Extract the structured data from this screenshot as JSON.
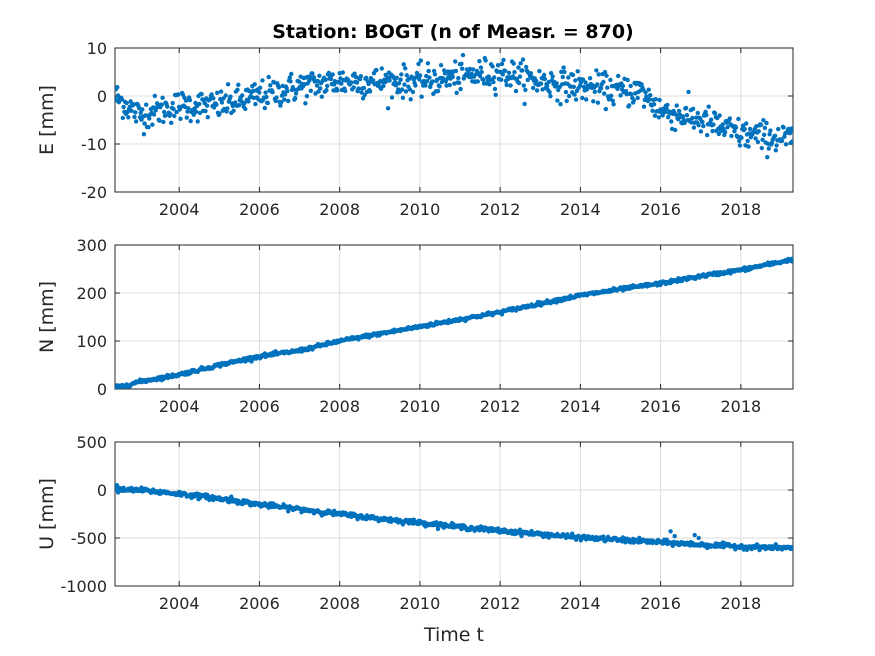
{
  "figure": {
    "title": "Station: BOGT (n of Measr. = 870)",
    "point_color": "#0072BD"
  },
  "chart_data": [
    {
      "type": "scatter",
      "name": "E",
      "ylabel": "E [mm]",
      "xlabel": "",
      "xlim": [
        2002.4,
        2019.3
      ],
      "ylim": [
        -20,
        10
      ],
      "xticks": [
        2004,
        2006,
        2008,
        2010,
        2012,
        2014,
        2016,
        2018
      ],
      "yticks": [
        -20,
        -10,
        0,
        10
      ],
      "grid": true,
      "trend": [
        [
          2002.4,
          0
        ],
        [
          2003.0,
          -4
        ],
        [
          2004.0,
          -2
        ],
        [
          2005.0,
          -2
        ],
        [
          2006.0,
          0
        ],
        [
          2007.0,
          2
        ],
        [
          2008.0,
          3
        ],
        [
          2009.0,
          3
        ],
        [
          2010.0,
          3
        ],
        [
          2011.0,
          4
        ],
        [
          2012.0,
          5
        ],
        [
          2013.0,
          3
        ],
        [
          2014.0,
          2
        ],
        [
          2015.0,
          1
        ],
        [
          2015.5,
          1
        ],
        [
          2016.0,
          -3
        ],
        [
          2017.0,
          -5
        ],
        [
          2018.0,
          -8
        ],
        [
          2019.3,
          -9
        ]
      ],
      "scatter_sd": 1.6,
      "n": 870
    },
    {
      "type": "scatter",
      "name": "N",
      "ylabel": "N [mm]",
      "xlabel": "",
      "xlim": [
        2002.4,
        2019.3
      ],
      "ylim": [
        0,
        300
      ],
      "xticks": [
        2004,
        2006,
        2008,
        2010,
        2012,
        2014,
        2016,
        2018
      ],
      "yticks": [
        0,
        100,
        200,
        300
      ],
      "grid": true,
      "trend": [
        [
          2002.4,
          2
        ],
        [
          2003.0,
          15
        ],
        [
          2004.0,
          30
        ],
        [
          2005.0,
          50
        ],
        [
          2006.0,
          68
        ],
        [
          2007.0,
          80
        ],
        [
          2008.0,
          100
        ],
        [
          2009.0,
          115
        ],
        [
          2010.0,
          130
        ],
        [
          2011.0,
          145
        ],
        [
          2012.0,
          160
        ],
        [
          2013.0,
          178
        ],
        [
          2014.0,
          195
        ],
        [
          2015.0,
          208
        ],
        [
          2016.0,
          220
        ],
        [
          2017.0,
          235
        ],
        [
          2018.0,
          248
        ],
        [
          2019.3,
          270
        ]
      ],
      "scatter_sd": 1.8,
      "n": 870
    },
    {
      "type": "scatter",
      "name": "U",
      "ylabel": "U [mm]",
      "xlabel": "Time t",
      "xlim": [
        2002.4,
        2019.3
      ],
      "ylim": [
        -1000,
        500
      ],
      "xticks": [
        2004,
        2006,
        2008,
        2010,
        2012,
        2014,
        2016,
        2018
      ],
      "yticks": [
        -1000,
        -500,
        0,
        500
      ],
      "grid": true,
      "trend": [
        [
          2002.4,
          0
        ],
        [
          2003.0,
          0
        ],
        [
          2004.0,
          -40
        ],
        [
          2005.0,
          -90
        ],
        [
          2006.0,
          -150
        ],
        [
          2007.0,
          -200
        ],
        [
          2008.0,
          -250
        ],
        [
          2009.0,
          -300
        ],
        [
          2010.0,
          -340
        ],
        [
          2011.0,
          -385
        ],
        [
          2012.0,
          -425
        ],
        [
          2013.0,
          -460
        ],
        [
          2014.0,
          -495
        ],
        [
          2015.0,
          -520
        ],
        [
          2016.0,
          -545
        ],
        [
          2017.0,
          -570
        ],
        [
          2018.0,
          -590
        ],
        [
          2019.3,
          -605
        ]
      ],
      "outliers": [
        [
          2002.45,
          50
        ],
        [
          2004.7,
          -50
        ],
        [
          2005.3,
          -70
        ],
        [
          2016.25,
          -430
        ],
        [
          2016.35,
          -480
        ],
        [
          2016.85,
          -470
        ],
        [
          2016.95,
          -500
        ]
      ],
      "scatter_sd": 12,
      "n": 870
    }
  ]
}
